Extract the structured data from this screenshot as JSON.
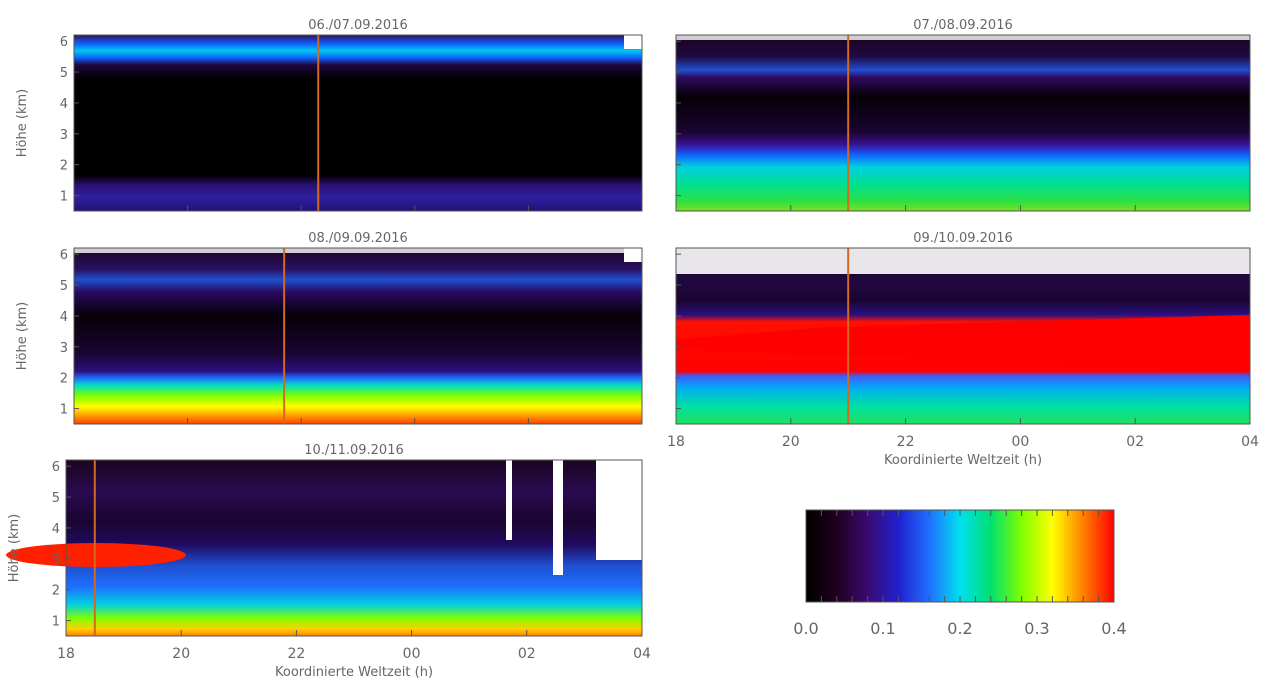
{
  "chart_data": {
    "type": "heatmap",
    "panels": [
      {
        "title": "06./07.09.2016",
        "ylabel": "Höhe (km)",
        "yticks": [
          "1",
          "2",
          "3",
          "4",
          "5",
          "6"
        ],
        "xticks": [],
        "xlabel": "",
        "marker_time": 22.3
      },
      {
        "title": "07./08.09.2016",
        "ylabel": "",
        "yticks": [],
        "xticks": [],
        "xlabel": "",
        "marker_time": 21.0
      },
      {
        "title": "08./09.09.2016",
        "ylabel": "Höhe (km)",
        "yticks": [
          "1",
          "2",
          "3",
          "4",
          "5",
          "6"
        ],
        "xticks": [],
        "xlabel": "",
        "marker_time": 21.7
      },
      {
        "title": "09./10.09.2016",
        "ylabel": "",
        "yticks": [],
        "xticks": [
          "18",
          "20",
          "22",
          "00",
          "02",
          "04"
        ],
        "xlabel": "Koordinierte Weltzeit (h)",
        "marker_time": 21.0
      },
      {
        "title": "10./11.09.2016",
        "ylabel": "Höhe (km)",
        "yticks": [
          "1",
          "2",
          "3",
          "4",
          "5",
          "6"
        ],
        "xticks": [
          "18",
          "20",
          "22",
          "00",
          "02",
          "04"
        ],
        "xlabel": "Koordinierte Weltzeit (h)",
        "marker_time": 18.5
      }
    ],
    "x_range": [
      18,
      28
    ],
    "y_range": [
      0.5,
      6.2
    ],
    "colorbar": {
      "ticks": [
        "0.0",
        "0.1",
        "0.2",
        "0.3",
        "0.4"
      ],
      "range": [
        0.0,
        0.4
      ],
      "colors": [
        "#000000",
        "#200020",
        "#3a0a6e",
        "#2020d0",
        "#1f6fff",
        "#00e0f0",
        "#00e070",
        "#7fff00",
        "#ffff00",
        "#ff8000",
        "#ff0000"
      ]
    },
    "marker_color": "#d2691e",
    "missing_color": "#ffffff"
  }
}
